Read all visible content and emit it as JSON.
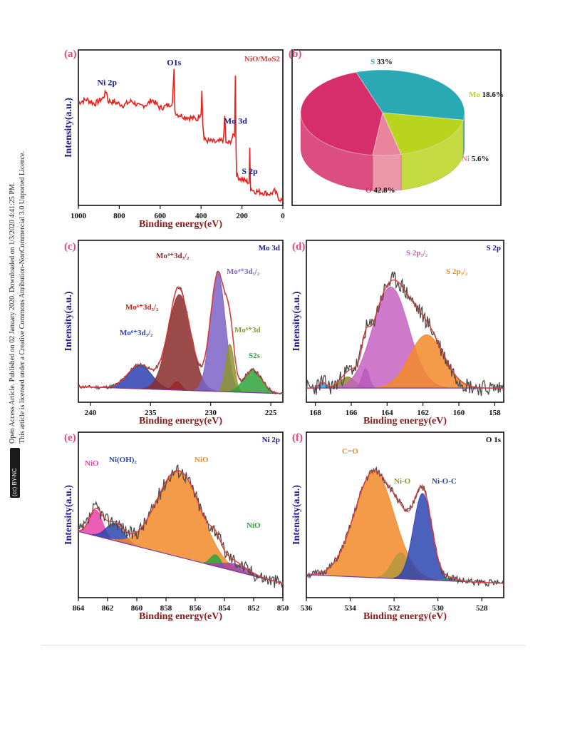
{
  "sidebar": {
    "line1": "Open Access Article. Published on 02 January 2020. Downloaded on 1/3/2020 4:41:25 PM.",
    "line2": "This article is licensed under a Creative Commons Attribution-NonCommercial 3.0 Unported Licence.",
    "badge": "(cc) BY-NC"
  },
  "colors": {
    "axis": "#1a1a8c",
    "panel_label": "#e0457b",
    "survey_line": "#e8231e",
    "raw": "#4a4a4a",
    "fit": "#e23a3a",
    "tick_text": "#111111"
  },
  "chart_data": [
    {
      "panel": "(a)",
      "type": "line",
      "title": "NiO/MoS2",
      "xlabel": "Binding energy(eV)",
      "ylabel": "Intensity(a.u.)",
      "xlim": [
        1000,
        0
      ],
      "x_reversed": true,
      "xticks": [
        1000,
        800,
        600,
        400,
        200,
        0
      ],
      "series": [
        {
          "x": [
            1000,
            960,
            920,
            880,
            862,
            855,
            820,
            780,
            740,
            700,
            660,
            640,
            600,
            560,
            540,
            532,
            528,
            520,
            480,
            440,
            420,
            400,
            396,
            392,
            385,
            360,
            320,
            290,
            284,
            278,
            260,
            236,
            232,
            229,
            226,
            220,
            200,
            180,
            165,
            162,
            158,
            140,
            100,
            60,
            40,
            20,
            0
          ],
          "y": [
            0.72,
            0.74,
            0.71,
            0.75,
            0.8,
            0.73,
            0.72,
            0.7,
            0.73,
            0.69,
            0.71,
            0.74,
            0.68,
            0.7,
            0.72,
            0.94,
            0.66,
            0.64,
            0.62,
            0.61,
            0.6,
            0.65,
            0.82,
            0.58,
            0.46,
            0.45,
            0.44,
            0.46,
            0.62,
            0.43,
            0.44,
            0.5,
            0.92,
            0.4,
            0.22,
            0.2,
            0.18,
            0.17,
            0.16,
            0.4,
            0.12,
            0.1,
            0.09,
            0.08,
            0.1,
            0.05,
            0.03
          ]
        }
      ],
      "annotations": [
        {
          "text": "Ni 2p",
          "x": 860
        },
        {
          "text": "O1s",
          "x": 532
        },
        {
          "text": "Mo 3d",
          "x": 232
        },
        {
          "text": "S 2p",
          "x": 162
        }
      ]
    },
    {
      "panel": "(b)",
      "type": "pie",
      "labels": [
        "S",
        "Mo",
        "Ni",
        "O"
      ],
      "values": [
        33,
        18.6,
        5.6,
        42.8
      ],
      "value_labels": [
        "33%",
        "18.6%",
        "5.6%",
        "42.8%"
      ],
      "colors": [
        "#2aa9b5",
        "#b9d41f",
        "#e8849b",
        "#d62e6a"
      ]
    },
    {
      "panel": "(c)",
      "type": "area",
      "title": "Mo 3d",
      "xlabel": "Binding energy(eV)",
      "ylabel": "Intensity(a.u.)",
      "xlim": [
        241,
        224
      ],
      "x_reversed": true,
      "xticks": [
        240,
        235,
        230,
        225
      ],
      "baseline": [
        [
          241,
          0.05
        ],
        [
          224,
          0.0
        ]
      ],
      "peaks": [
        {
          "name": "Mo6+3d3/2",
          "center": 235.9,
          "height": 0.17,
          "width": 1.0,
          "color": "#2b3fb0"
        },
        {
          "name": "Mo6+3d5/2",
          "center": 232.8,
          "height": 0.06,
          "width": 0.35,
          "color": "#e01414"
        },
        {
          "name": "Mo4+3d3/2",
          "center": 232.6,
          "height": 0.68,
          "width": 0.95,
          "color": "#8b2b2b"
        },
        {
          "name": "Mo4+3d5/2",
          "center": 229.4,
          "height": 0.84,
          "width": 0.62,
          "color": "#7d63c8"
        },
        {
          "name": "Mo6+3d",
          "center": 228.4,
          "height": 0.34,
          "width": 0.35,
          "color": "#8f9430"
        },
        {
          "name": "S2s",
          "center": 226.5,
          "height": 0.16,
          "width": 0.75,
          "color": "#2ea33a"
        }
      ],
      "labels": [
        {
          "text": "Mo⁶⁺3d₃/₂",
          "color": "#2b3fb0"
        },
        {
          "text": "Mo⁶⁺3d₅/₂",
          "color": "#e01414"
        },
        {
          "text": "Mo⁴⁺3d₃/₂",
          "color": "#8b2b2b"
        },
        {
          "text": "Mo⁴⁺3d₅/₂",
          "color": "#7d63c8"
        },
        {
          "text": "Mo⁶⁺3d",
          "color": "#8f9430"
        },
        {
          "text": "S2s",
          "color": "#2ea33a"
        }
      ]
    },
    {
      "panel": "(d)",
      "type": "area",
      "title": "S 2p",
      "xlabel": "Binding energy(eV)",
      "ylabel": "Intensity(a.u.)",
      "xlim": [
        168.5,
        157.5
      ],
      "x_reversed": true,
      "xticks": [
        168,
        166,
        164,
        162,
        160,
        158
      ],
      "baseline": [
        [
          168.5,
          0.04
        ],
        [
          157.5,
          0.04
        ]
      ],
      "peaks": [
        {
          "name": "small1",
          "center": 167.6,
          "height": 0.04,
          "width": 0.2,
          "color": "#3b9ee0"
        },
        {
          "name": "small2",
          "center": 166.2,
          "height": 0.08,
          "width": 0.4,
          "color": "#8f8a2a"
        },
        {
          "name": "small3",
          "center": 165.2,
          "height": 0.14,
          "width": 0.2,
          "color": "#7a3a9c"
        },
        {
          "name": "S 2p1/2",
          "center": 163.8,
          "height": 0.72,
          "width": 1.0,
          "color": "#c561c0"
        },
        {
          "name": "S 2p3/2",
          "center": 161.8,
          "height": 0.38,
          "width": 0.95,
          "color": "#f28a2a"
        }
      ],
      "labels": [
        {
          "text": "S 2p₁/₂",
          "color": "#c45cb8"
        },
        {
          "text": "S 2p₃/₂",
          "color": "#f28a2a"
        }
      ]
    },
    {
      "panel": "(e)",
      "type": "area",
      "title": "Ni 2p",
      "xlabel": "Binding energy(eV)",
      "ylabel": "Intensity(a.u.)",
      "xlim": [
        864,
        850
      ],
      "x_reversed": true,
      "xticks": [
        864,
        862,
        860,
        858,
        856,
        854,
        852,
        850
      ],
      "baseline": [
        [
          864,
          0.4
        ],
        [
          850,
          0.04
        ]
      ],
      "peaks": [
        {
          "name": "NiO",
          "center": 862.8,
          "height": 0.18,
          "width": 0.45,
          "color": "#e642a8"
        },
        {
          "name": "Ni(OH)2",
          "center": 861.5,
          "height": 0.12,
          "width": 0.6,
          "color": "#2d45b0"
        },
        {
          "name": "NiO",
          "center": 857.1,
          "height": 0.6,
          "width": 1.5,
          "color": "#f28a2a"
        },
        {
          "name": "NiO",
          "center": 854.6,
          "height": 0.08,
          "width": 0.35,
          "color": "#2ea33a"
        },
        {
          "name": "tail",
          "center": 853.3,
          "height": 0.05,
          "width": 0.9,
          "color": "#a142a8"
        }
      ],
      "labels": [
        {
          "text": "NiO",
          "color": "#e642a8"
        },
        {
          "text": "Ni(OH)₂",
          "color": "#2d45b0"
        },
        {
          "text": "NiO",
          "color": "#f28a2a"
        },
        {
          "text": "NiO",
          "color": "#2ea33a"
        }
      ]
    },
    {
      "panel": "(f)",
      "type": "area",
      "title": "O 1s",
      "xlabel": "Binding energy(eV)",
      "ylabel": "Intensity(a.u.)",
      "xlim": [
        536,
        527
      ],
      "x_reversed": true,
      "xticks": [
        536,
        534,
        532,
        530,
        528
      ],
      "baseline": [
        [
          536,
          0.1
        ],
        [
          527,
          0.04
        ]
      ],
      "peaks": [
        {
          "name": "C=O",
          "center": 532.9,
          "height": 0.74,
          "width": 0.9,
          "color": "#f28a2a"
        },
        {
          "name": "Ni-O",
          "center": 531.7,
          "height": 0.18,
          "width": 0.4,
          "color": "#b5963c"
        },
        {
          "name": "Ni-O-C",
          "center": 530.7,
          "height": 0.6,
          "width": 0.42,
          "color": "#2d45b0"
        },
        {
          "name": "tail",
          "center": 529.4,
          "height": 0.02,
          "width": 0.3,
          "color": "#2ea33a"
        }
      ],
      "labels": [
        {
          "text": "C=O",
          "color": "#f28a2a"
        },
        {
          "text": "Ni-O",
          "color": "#8f9430"
        },
        {
          "text": "Ni-O-C",
          "color": "#2d45b0"
        }
      ]
    }
  ]
}
